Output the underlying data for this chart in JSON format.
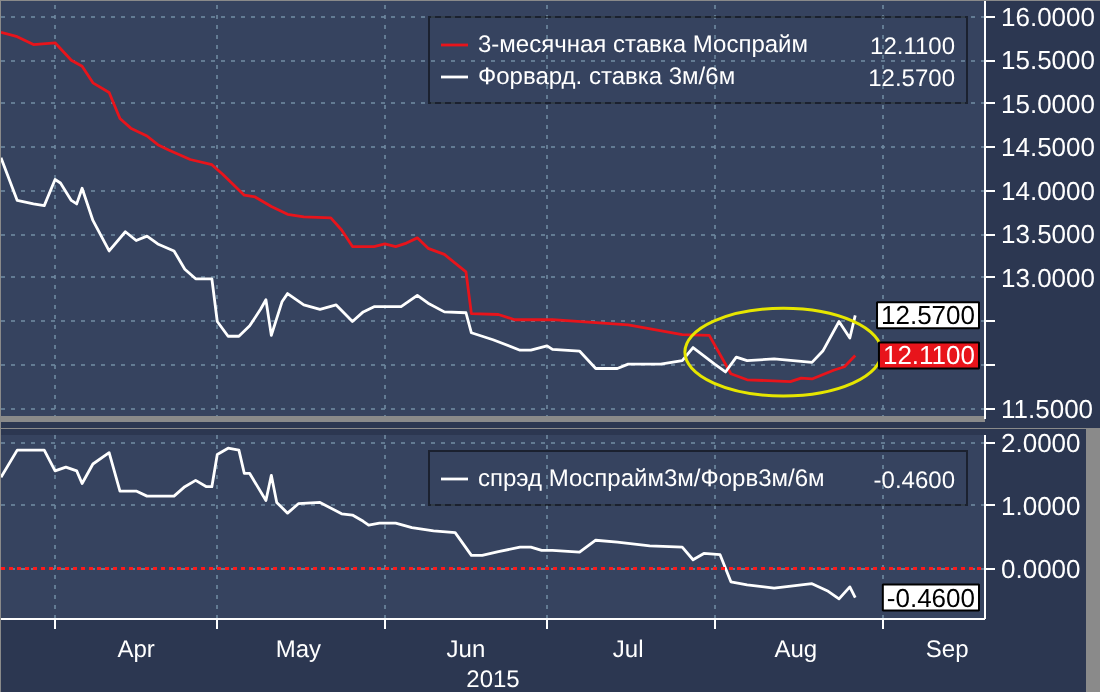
{
  "chart_data": [
    {
      "type": "line",
      "xlim": [
        "2015-03-22",
        "2015-09-20"
      ],
      "ylim": [
        11.38,
        16.18
      ],
      "xticks": [
        {
          "value": "2015-04-01",
          "label": null
        },
        {
          "value": "2015-05-01",
          "label": null
        },
        {
          "value": "2015-06-01",
          "label": null
        },
        {
          "value": "2015-07-01",
          "label": null
        },
        {
          "value": "2015-08-01",
          "label": null
        },
        {
          "value": "2015-09-01",
          "label": null
        }
      ],
      "yticks": [
        {
          "value": 11.5,
          "label": "11.5000"
        },
        {
          "value": 12.0,
          "label": null
        },
        {
          "value": 12.5,
          "label": null
        },
        {
          "value": 13.0,
          "label": "13.0000"
        },
        {
          "value": 13.5,
          "label": "13.5000"
        },
        {
          "value": 14.0,
          "label": "14.0000"
        },
        {
          "value": 14.5,
          "label": "14.5000"
        },
        {
          "value": 15.0,
          "label": "15.0000"
        },
        {
          "value": 15.5,
          "label": "15.5000"
        },
        {
          "value": 16.0,
          "label": "16.0000"
        }
      ],
      "tick_labels": "y",
      "grid": true,
      "legend": "top right",
      "series": [
        {
          "name": "3-месячная ставка Моспрайм",
          "color": "#e8141b",
          "x": [
            "2015-03-22",
            "2015-03-25",
            "2015-03-28",
            "2015-04-01",
            "2015-04-04",
            "2015-04-06",
            "2015-04-08",
            "2015-04-11",
            "2015-04-13",
            "2015-04-15",
            "2015-04-18",
            "2015-04-20",
            "2015-04-22",
            "2015-04-26",
            "2015-04-30",
            "2015-05-02",
            "2015-05-06",
            "2015-05-08",
            "2015-05-11",
            "2015-05-14",
            "2015-05-17",
            "2015-05-22",
            "2015-05-24",
            "2015-05-26",
            "2015-05-30",
            "2015-06-01",
            "2015-06-03",
            "2015-06-05",
            "2015-06-07",
            "2015-06-09",
            "2015-06-12",
            "2015-06-16",
            "2015-06-17",
            "2015-06-22",
            "2015-06-25",
            "2015-07-02",
            "2015-07-16",
            "2015-07-26",
            "2015-07-31",
            "2015-08-04",
            "2015-08-07",
            "2015-08-15",
            "2015-08-17",
            "2015-08-19",
            "2015-08-23",
            "2015-08-25",
            "2015-08-27"
          ],
          "values": [
            15.82,
            15.77,
            15.68,
            15.7,
            15.5,
            15.43,
            15.24,
            15.13,
            14.83,
            14.72,
            14.63,
            14.53,
            14.47,
            14.36,
            14.3,
            14.19,
            13.95,
            13.93,
            13.82,
            13.73,
            13.7,
            13.69,
            13.55,
            13.36,
            13.36,
            13.39,
            13.36,
            13.4,
            13.46,
            13.34,
            13.27,
            13.07,
            12.59,
            12.58,
            12.52,
            12.52,
            12.46,
            12.35,
            12.34,
            11.9,
            11.83,
            11.81,
            11.85,
            11.84,
            11.94,
            11.98,
            12.11
          ],
          "value_labels": [
            null,
            null,
            null,
            null,
            null,
            null,
            null,
            null,
            null,
            null,
            null,
            null,
            null,
            null,
            null,
            null,
            null,
            null,
            null,
            null,
            null,
            null,
            null,
            null,
            null,
            null,
            null,
            null,
            null,
            null,
            null,
            null,
            null,
            null,
            null,
            null,
            null,
            null,
            null,
            null,
            null,
            null,
            null,
            null,
            null,
            null,
            "12.1100"
          ]
        },
        {
          "name": "Форвард. ставка 3м/6м",
          "color": "#ffffff",
          "x": [
            "2015-03-22",
            "2015-03-25",
            "2015-03-28",
            "2015-03-30",
            "2015-04-01",
            "2015-04-02",
            "2015-04-04",
            "2015-04-05",
            "2015-04-06",
            "2015-04-08",
            "2015-04-11",
            "2015-04-14",
            "2015-04-16",
            "2015-04-18",
            "2015-04-20",
            "2015-04-23",
            "2015-04-25",
            "2015-04-27",
            "2015-04-30",
            "2015-05-01",
            "2015-05-03",
            "2015-05-05",
            "2015-05-07",
            "2015-05-09",
            "2015-05-10",
            "2015-05-11",
            "2015-05-13",
            "2015-05-14",
            "2015-05-17",
            "2015-05-20",
            "2015-05-23",
            "2015-05-26",
            "2015-05-28",
            "2015-05-30",
            "2015-06-04",
            "2015-06-07",
            "2015-06-09",
            "2015-06-12",
            "2015-06-16",
            "2015-06-17",
            "2015-06-21",
            "2015-06-26",
            "2015-06-28",
            "2015-07-01",
            "2015-07-02",
            "2015-07-07",
            "2015-07-10",
            "2015-07-14",
            "2015-07-16",
            "2015-07-22",
            "2015-07-26",
            "2015-07-28",
            "2015-08-01",
            "2015-08-03",
            "2015-08-05",
            "2015-08-07",
            "2015-08-12",
            "2015-08-19",
            "2015-08-21",
            "2015-08-24",
            "2015-08-26",
            "2015-08-27"
          ],
          "values": [
            14.38,
            13.89,
            13.85,
            13.83,
            14.13,
            14.09,
            13.89,
            13.85,
            14.03,
            13.66,
            13.31,
            13.53,
            13.43,
            13.48,
            13.39,
            13.31,
            13.1,
            12.99,
            12.99,
            12.5,
            12.33,
            12.33,
            12.45,
            12.64,
            12.75,
            12.34,
            12.73,
            12.82,
            12.69,
            12.64,
            12.69,
            12.5,
            12.61,
            12.67,
            12.67,
            12.8,
            12.71,
            12.61,
            12.6,
            12.37,
            12.29,
            12.17,
            12.17,
            12.22,
            12.18,
            12.16,
            11.96,
            11.96,
            12.01,
            12.01,
            12.05,
            12.2,
            12.01,
            11.92,
            12.09,
            12.05,
            12.07,
            12.03,
            12.16,
            12.5,
            12.31,
            12.57
          ],
          "value_labels": [
            null,
            null,
            null,
            null,
            null,
            null,
            null,
            null,
            null,
            null,
            null,
            null,
            null,
            null,
            null,
            null,
            null,
            null,
            null,
            null,
            null,
            null,
            null,
            null,
            null,
            null,
            null,
            null,
            null,
            null,
            null,
            null,
            null,
            null,
            null,
            null,
            null,
            null,
            null,
            null,
            null,
            null,
            null,
            null,
            null,
            null,
            null,
            null,
            null,
            null,
            null,
            null,
            null,
            null,
            null,
            null,
            null,
            null,
            null,
            null,
            null,
            "12.5700"
          ]
        }
      ]
    },
    {
      "type": "line",
      "xlabel": "2015",
      "xlim": [
        "2015-03-22",
        "2015-09-20"
      ],
      "ylim": [
        -0.8,
        2.12
      ],
      "xticks": [
        {
          "value": "2015-04-01",
          "label": null
        },
        {
          "value": "2015-04-16",
          "label": "Apr"
        },
        {
          "value": "2015-05-01",
          "label": null
        },
        {
          "value": "2015-05-16",
          "label": "May"
        },
        {
          "value": "2015-06-01",
          "label": null
        },
        {
          "value": "2015-06-16",
          "label": "Jun"
        },
        {
          "value": "2015-07-01",
          "label": null
        },
        {
          "value": "2015-07-16",
          "label": "Jul"
        },
        {
          "value": "2015-08-01",
          "label": null
        },
        {
          "value": "2015-08-16",
          "label": "Aug"
        },
        {
          "value": "2015-09-01",
          "label": null
        },
        {
          "value": "2015-09-13",
          "label": "Sep"
        }
      ],
      "yticks": [
        {
          "value": 0.0,
          "label": "0.0000"
        },
        {
          "value": 1.0,
          "label": "1.0000"
        },
        {
          "value": 2.0,
          "label": "2.0000"
        }
      ],
      "grid": true,
      "legend": "top right",
      "ref_lines": [
        {
          "axis": "y",
          "value": 0,
          "color": "#ff1a1a",
          "line_style": "dotted"
        }
      ],
      "series": [
        {
          "name": "спрэд Моспрайм3м/Форв3м/6м",
          "color": "#ffffff",
          "x": [
            "2015-03-22",
            "2015-03-25",
            "2015-03-30",
            "2015-04-01",
            "2015-04-03",
            "2015-04-05",
            "2015-04-06",
            "2015-04-08",
            "2015-04-11",
            "2015-04-13",
            "2015-04-16",
            "2015-04-18",
            "2015-04-23",
            "2015-04-25",
            "2015-04-27",
            "2015-04-29",
            "2015-04-30",
            "2015-05-01",
            "2015-05-03",
            "2015-05-05",
            "2015-05-06",
            "2015-05-07",
            "2015-05-10",
            "2015-05-11",
            "2015-05-12",
            "2015-05-14",
            "2015-05-16",
            "2015-05-20",
            "2015-05-24",
            "2015-05-26",
            "2015-05-28",
            "2015-05-29",
            "2015-05-31",
            "2015-06-03",
            "2015-06-06",
            "2015-06-10",
            "2015-06-14",
            "2015-06-17",
            "2015-06-19",
            "2015-06-22",
            "2015-06-26",
            "2015-06-28",
            "2015-06-30",
            "2015-07-02",
            "2015-07-07",
            "2015-07-10",
            "2015-07-14",
            "2015-07-20",
            "2015-07-26",
            "2015-07-28",
            "2015-07-30",
            "2015-08-02",
            "2015-08-04",
            "2015-08-07",
            "2015-08-12",
            "2015-08-19",
            "2015-08-22",
            "2015-08-24",
            "2015-08-26",
            "2015-08-27"
          ],
          "values": [
            1.45,
            1.88,
            1.88,
            1.55,
            1.61,
            1.55,
            1.35,
            1.66,
            1.84,
            1.23,
            1.23,
            1.15,
            1.15,
            1.3,
            1.4,
            1.3,
            1.3,
            1.81,
            1.91,
            1.88,
            1.51,
            1.51,
            1.08,
            1.48,
            1.05,
            0.88,
            1.03,
            1.05,
            0.87,
            0.85,
            0.75,
            0.69,
            0.72,
            0.72,
            0.65,
            0.6,
            0.57,
            0.21,
            0.21,
            0.27,
            0.34,
            0.34,
            0.29,
            0.29,
            0.26,
            0.45,
            0.42,
            0.36,
            0.34,
            0.14,
            0.24,
            0.22,
            -0.21,
            -0.26,
            -0.31,
            -0.24,
            -0.36,
            -0.48,
            -0.29,
            -0.46
          ],
          "value_labels": [
            null,
            null,
            null,
            null,
            null,
            null,
            null,
            null,
            null,
            null,
            null,
            null,
            null,
            null,
            null,
            null,
            null,
            null,
            null,
            null,
            null,
            null,
            null,
            null,
            null,
            null,
            null,
            null,
            null,
            null,
            null,
            null,
            null,
            null,
            null,
            null,
            null,
            null,
            null,
            null,
            null,
            null,
            null,
            null,
            null,
            null,
            null,
            null,
            null,
            null,
            null,
            null,
            null,
            null,
            null,
            null,
            null,
            null,
            null,
            "-0.4600"
          ]
        }
      ]
    }
  ]
}
